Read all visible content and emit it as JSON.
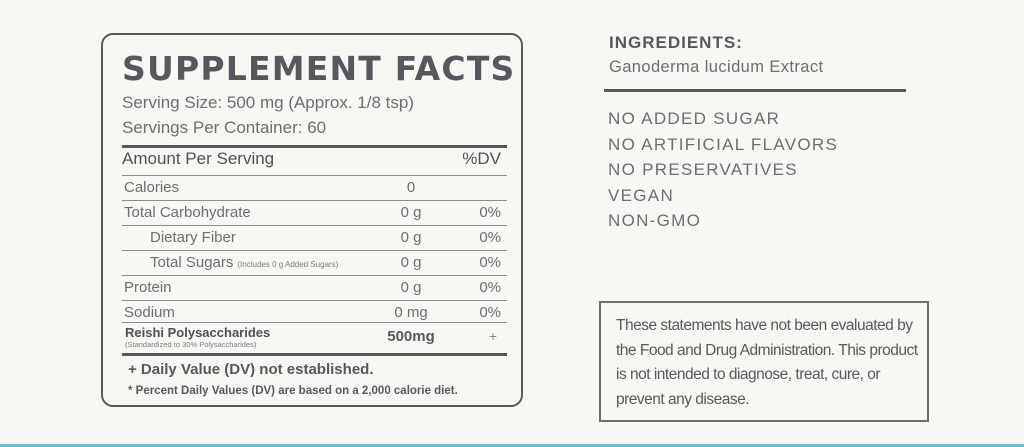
{
  "facts": {
    "title": "SUPPLEMENT FACTS",
    "serving_size": "Serving Size: 500 mg (Approx. 1/8 tsp)",
    "servings_per_container": "Servings Per Container: 60",
    "header_label": "Amount Per Serving",
    "header_dv": "%DV",
    "rows": [
      {
        "name": "Calories",
        "amount": "0",
        "dv": ""
      },
      {
        "name": "Total Carbohydrate",
        "amount": "0 g",
        "dv": "0%"
      },
      {
        "name": "Dietary Fiber",
        "amount": "0 g",
        "dv": "0%"
      },
      {
        "name": "Total Sugars",
        "note": "(Includes 0 g Added Sugars)",
        "amount": "0 g",
        "dv": "0%"
      },
      {
        "name": "Protein",
        "amount": "0 g",
        "dv": "0%"
      },
      {
        "name": "Sodium",
        "amount": "0 mg",
        "dv": "0%"
      }
    ],
    "reishi": {
      "name": "Reishi Polysaccharides",
      "sub": "(Standardized to 30% Polysaccharides)",
      "amount": "500mg",
      "dv": "+"
    },
    "footnote_dv": "+ Daily Value (DV) not established.",
    "footnote_percent": "* Percent Daily Values (DV) are based on a 2,000 calorie diet."
  },
  "ingredients": {
    "title": "INGREDIENTS:",
    "text": "Ganoderma lucidum Extract"
  },
  "claims": [
    "NO ADDED SUGAR",
    "NO ARTIFICIAL FLAVORS",
    "NO PRESERVATIVES",
    "VEGAN",
    "NON-GMO"
  ],
  "disclaimer": "These statements have not been evaluated by the Food and Drug Administration. This product is not intended to diagnose, treat, cure, or prevent any disease.",
  "colors": {
    "text": "#55595d",
    "background": "#f8f7f4",
    "accent_bar": "#5fc3d3"
  }
}
